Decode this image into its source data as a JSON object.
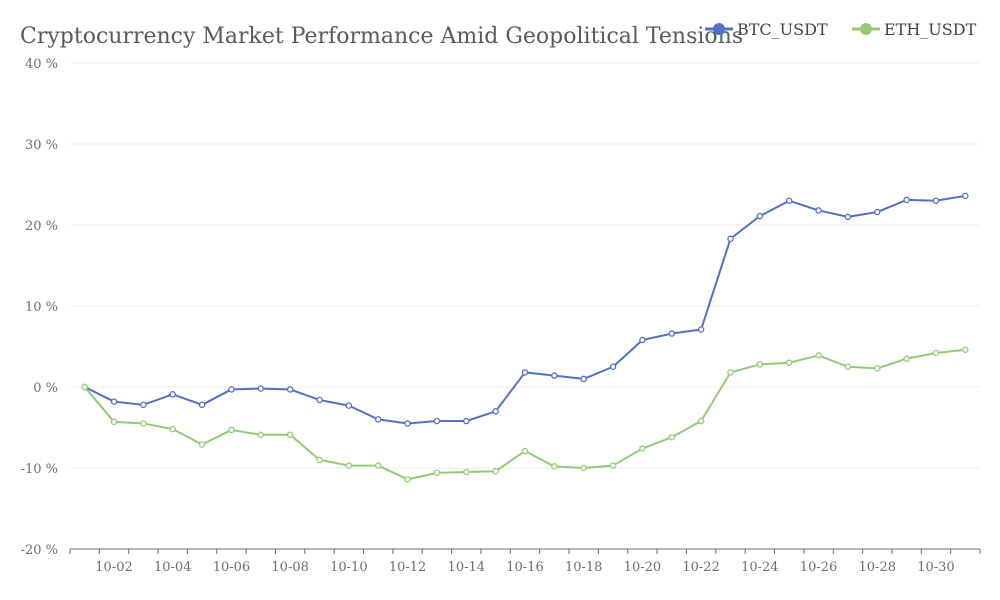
{
  "chart_data": {
    "type": "line",
    "title": "Cryptocurrency Market Performance Amid Geopolitical Tensions",
    "xlabel": "",
    "ylabel": "",
    "ylim": [
      -20,
      40
    ],
    "y_ticks": [
      -20,
      -10,
      0,
      10,
      20,
      30,
      40
    ],
    "y_tick_suffix": " %",
    "x": [
      "10-01",
      "10-02",
      "10-03",
      "10-04",
      "10-05",
      "10-06",
      "10-07",
      "10-08",
      "10-09",
      "10-10",
      "10-11",
      "10-12",
      "10-13",
      "10-14",
      "10-15",
      "10-16",
      "10-17",
      "10-18",
      "10-19",
      "10-20",
      "10-21",
      "10-22",
      "10-23",
      "10-24",
      "10-25",
      "10-26",
      "10-27",
      "10-28",
      "10-29",
      "10-30",
      "10-31"
    ],
    "x_tick_labels": [
      "10-02",
      "10-04",
      "10-06",
      "10-08",
      "10-10",
      "10-12",
      "10-14",
      "10-16",
      "10-18",
      "10-20",
      "10-22",
      "10-24",
      "10-26",
      "10-28",
      "10-30"
    ],
    "grid": true,
    "legend_position": "top-right",
    "series": [
      {
        "name": "BTC_USDT",
        "color": "#5470c6",
        "values": [
          0,
          -1.8,
          -2.2,
          -0.9,
          -2.2,
          -0.3,
          -0.2,
          -0.3,
          -1.6,
          -2.3,
          -4.0,
          -4.5,
          -4.2,
          -4.2,
          -3.0,
          1.8,
          1.4,
          1.0,
          2.5,
          5.8,
          6.6,
          7.1,
          18.3,
          21.1,
          23.0,
          21.8,
          21.0,
          21.6,
          23.1,
          23.0,
          23.6
        ]
      },
      {
        "name": "ETH_USDT",
        "color": "#91cc75",
        "values": [
          0,
          -4.3,
          -4.5,
          -5.2,
          -7.1,
          -5.3,
          -5.9,
          -5.9,
          -9.0,
          -9.7,
          -9.7,
          -11.4,
          -10.6,
          -10.5,
          -10.4,
          -7.9,
          -9.8,
          -10.0,
          -9.7,
          -7.6,
          -6.2,
          -4.2,
          1.8,
          2.8,
          3.0,
          3.9,
          2.5,
          2.3,
          3.5,
          4.2,
          4.6
        ]
      }
    ]
  }
}
